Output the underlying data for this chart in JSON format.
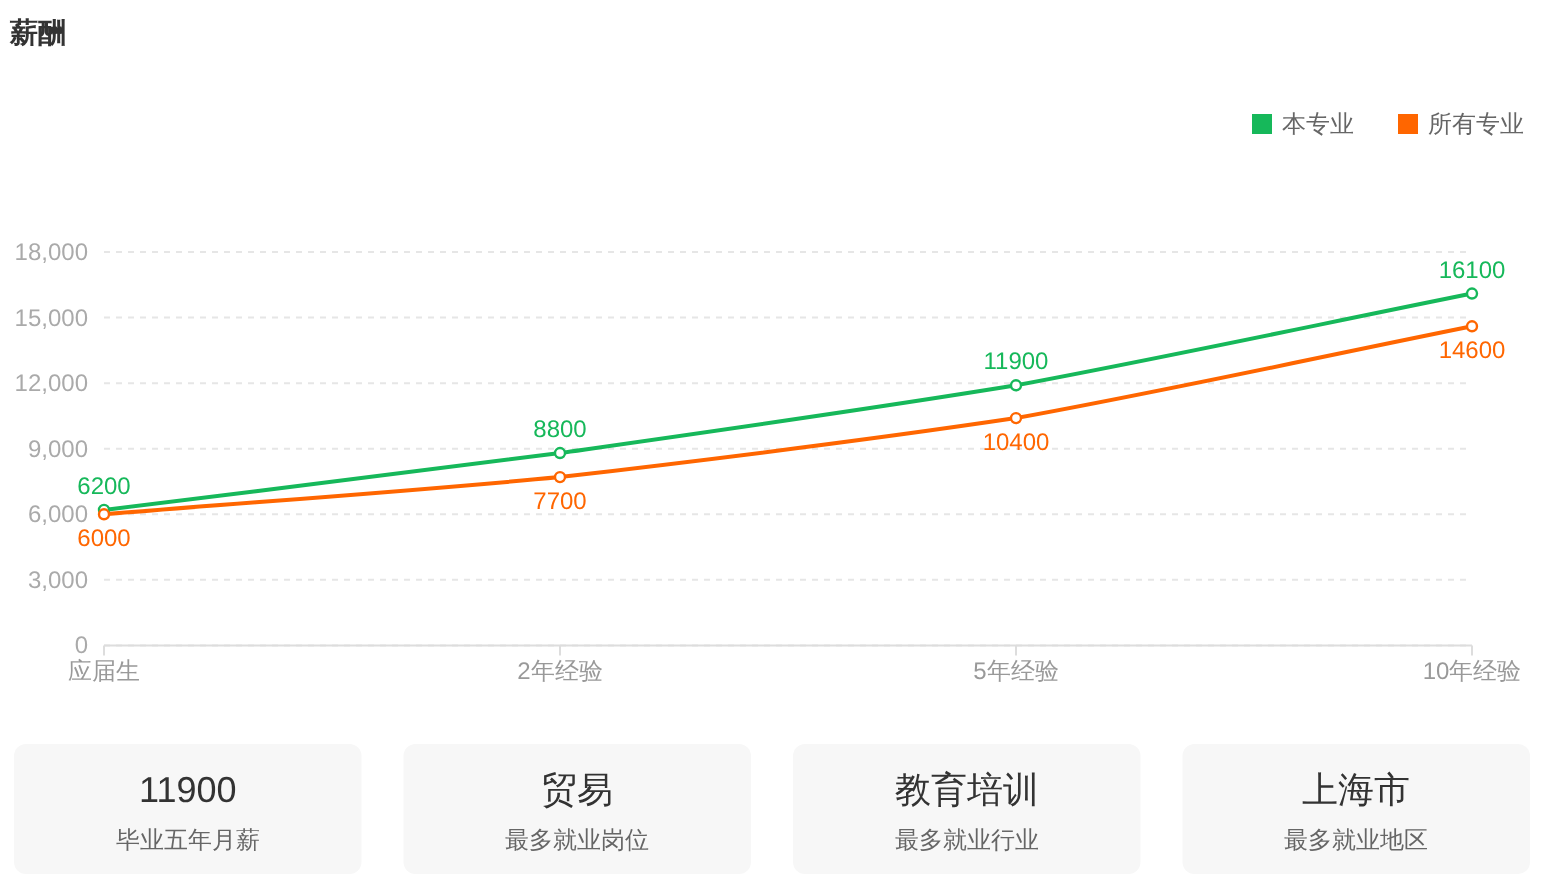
{
  "chart_data": [
    {
      "type": "line",
      "title": "薪酬",
      "categories": [
        "应届生",
        "2年经验",
        "5年经验",
        "10年经验"
      ],
      "series": [
        {
          "name": "本专业",
          "color": "#16b85a",
          "values": [
            6200,
            8800,
            11900,
            16100
          ]
        },
        {
          "name": "所有专业",
          "color": "#ff6600",
          "values": [
            6000,
            7700,
            10400,
            14600
          ]
        }
      ],
      "ylim": [
        0,
        18000
      ],
      "yticks": [
        0,
        {
          "value": 3000,
          "label": "3,000"
        },
        {
          "value": 6000,
          "label": "6,000"
        },
        {
          "value": 9000,
          "label": "9,000"
        },
        {
          "value": 12000,
          "label": "12,000"
        },
        {
          "value": 15000,
          "label": "15,000"
        },
        {
          "value": 18000,
          "label": "18,000"
        }
      ],
      "grid": "y",
      "legend": "top right",
      "marker": "circle",
      "data_labels": true
    },
    {
      "type": "other",
      "title": "11900",
      "subtitle": "毕业五年月薪"
    },
    {
      "type": "other",
      "title": "贸易",
      "subtitle": "最多就业岗位"
    },
    {
      "type": "other",
      "title": "教育培训",
      "subtitle": "最多就业行业"
    },
    {
      "type": "other",
      "title": "上海市",
      "subtitle": "最多就业地区"
    }
  ]
}
